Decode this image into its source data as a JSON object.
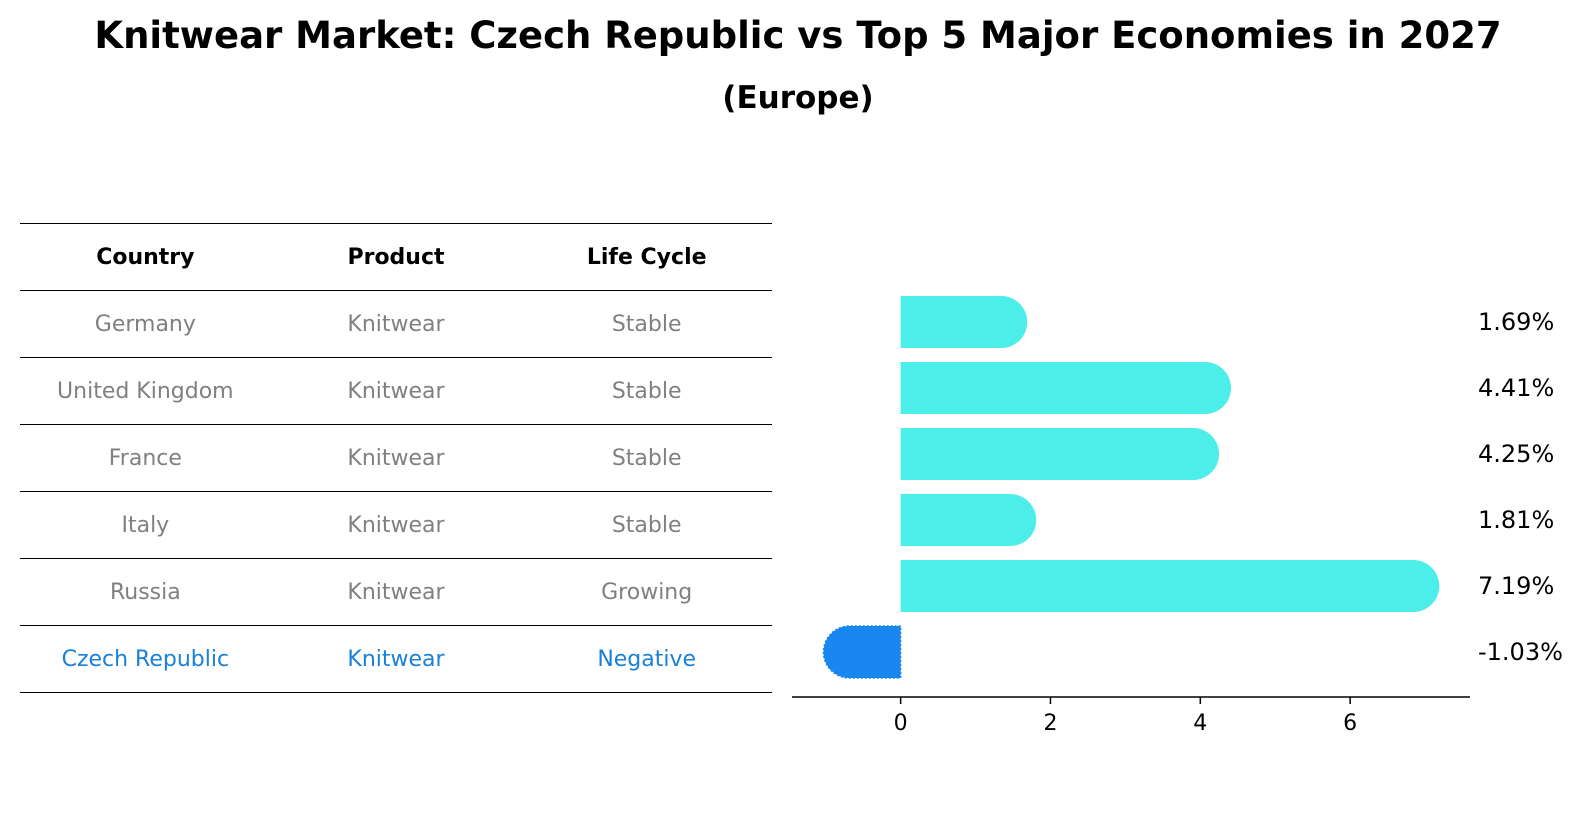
{
  "title": "Knitwear Market: Czech Republic vs Top 5 Major Economies in 2027",
  "subtitle": "(Europe)",
  "table": {
    "headers": [
      "Country",
      "Product",
      "Life Cycle"
    ],
    "rows": [
      [
        "Germany",
        "Knitwear",
        "Stable"
      ],
      [
        "United Kingdom",
        "Knitwear",
        "Stable"
      ],
      [
        "France",
        "Knitwear",
        "Stable"
      ],
      [
        "Italy",
        "Knitwear",
        "Stable"
      ],
      [
        "Russia",
        "Knitwear",
        "Growing"
      ],
      [
        "Czech Republic",
        "Knitwear",
        "Negative"
      ]
    ]
  },
  "colors": {
    "bar_default": "#4ceeea",
    "bar_highlight": "#1a86f0",
    "table_text": "#808080",
    "table_highlight_text": "#1a80d8"
  },
  "chart_data": {
    "type": "bar",
    "orientation": "horizontal",
    "categories": [
      "Germany",
      "United Kingdom",
      "France",
      "Italy",
      "Russia",
      "Czech Republic"
    ],
    "values": [
      1.69,
      4.41,
      4.25,
      1.81,
      7.19,
      -1.03
    ],
    "value_labels": [
      "1.69%",
      "4.41%",
      "4.25%",
      "1.81%",
      "7.19%",
      "-1.03%"
    ],
    "highlight_index": 5,
    "xlim": [
      -1.45,
      7.6
    ],
    "xticks": [
      0,
      2,
      4,
      6
    ],
    "xlabel": "",
    "ylabel": ""
  }
}
